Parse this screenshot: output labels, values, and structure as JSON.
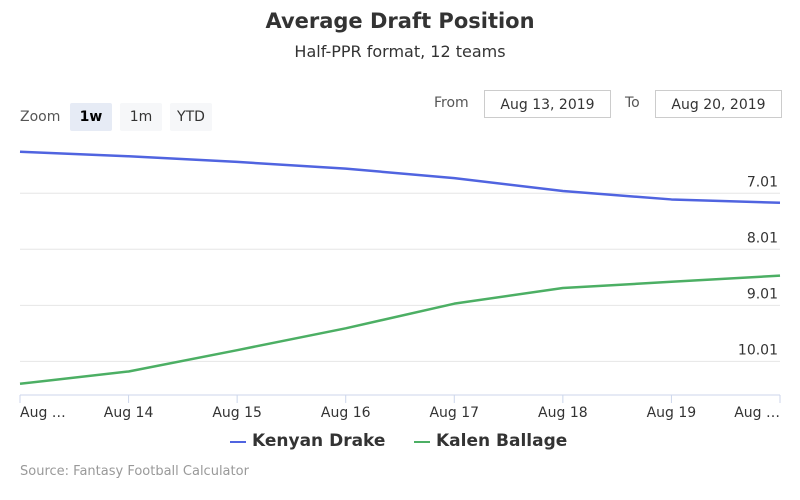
{
  "chart_data": {
    "type": "line",
    "title": "Average Draft Position",
    "subtitle": "Half-PPR format, 12 teams",
    "x": [
      "Aug 13",
      "Aug 14",
      "Aug 15",
      "Aug 16",
      "Aug 17",
      "Aug 18",
      "Aug 19",
      "Aug 20"
    ],
    "xtick_labels": [
      "Aug …",
      "Aug 14",
      "Aug 15",
      "Aug 16",
      "Aug 17",
      "Aug 18",
      "Aug 19",
      "Aug …"
    ],
    "series": [
      {
        "name": "Kenyan Drake",
        "color": "#5064e0",
        "values": [
          6.27,
          6.35,
          6.45,
          6.57,
          6.74,
          6.97,
          7.12,
          7.18
        ]
      },
      {
        "name": "Kalen Ballage",
        "color": "#4caf64",
        "values": [
          10.41,
          10.19,
          9.81,
          9.42,
          8.98,
          8.7,
          8.59,
          8.48
        ]
      }
    ],
    "y_ticks": [
      "7.01",
      "8.01",
      "9.01",
      "10.01"
    ],
    "y_tick_values": [
      7.01,
      8.01,
      9.01,
      10.01
    ],
    "y_reversed": true,
    "ylim": [
      5.97,
      10.61
    ],
    "grid": true,
    "legend_position": "bottom-center",
    "xlabel": "",
    "ylabel": ""
  },
  "controls": {
    "zoom_label": "Zoom",
    "zoom_buttons": [
      "1w",
      "1m",
      "YTD"
    ],
    "zoom_selected": "1w",
    "from_label": "From",
    "from_value": "Aug 13, 2019",
    "to_label": "To",
    "to_value": "Aug 20, 2019"
  },
  "credits": "Source: Fantasy Football Calculator"
}
